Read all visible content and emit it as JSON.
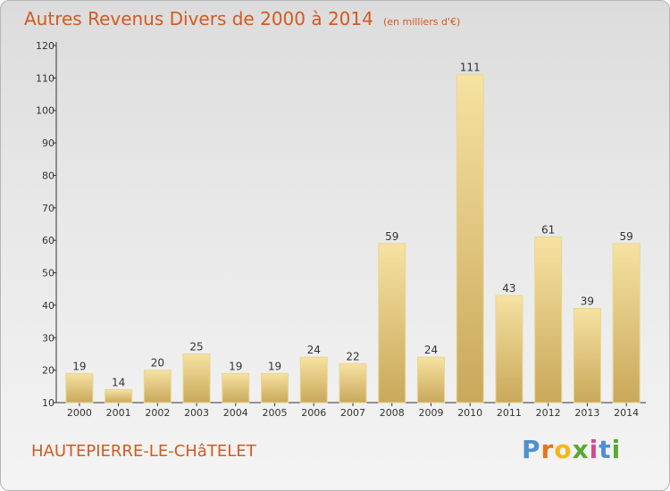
{
  "chart_data": {
    "type": "bar",
    "title": "Autres Revenus Divers de 2000 à 2014",
    "subtitle": "(en milliers d'€)",
    "categories": [
      "2000",
      "2001",
      "2002",
      "2003",
      "2004",
      "2005",
      "2006",
      "2007",
      "2008",
      "2009",
      "2010",
      "2011",
      "2012",
      "2013",
      "2014"
    ],
    "values": [
      19,
      14,
      20,
      25,
      19,
      19,
      24,
      22,
      59,
      24,
      111,
      43,
      61,
      39,
      59
    ],
    "ylim": [
      10,
      120
    ],
    "yticks": [
      10,
      20,
      30,
      40,
      50,
      60,
      70,
      80,
      90,
      100,
      110,
      120
    ],
    "grid": false,
    "bar_color": "#e8cf86",
    "bar_color_light": "#f6e2a2",
    "bar_color_dark": "#c9a85a"
  },
  "footer": {
    "commune": "HAUTEPIERRE-LE-CHâTELET",
    "logo": [
      "P",
      "r",
      "o",
      "x",
      "i",
      "t",
      "i"
    ]
  }
}
